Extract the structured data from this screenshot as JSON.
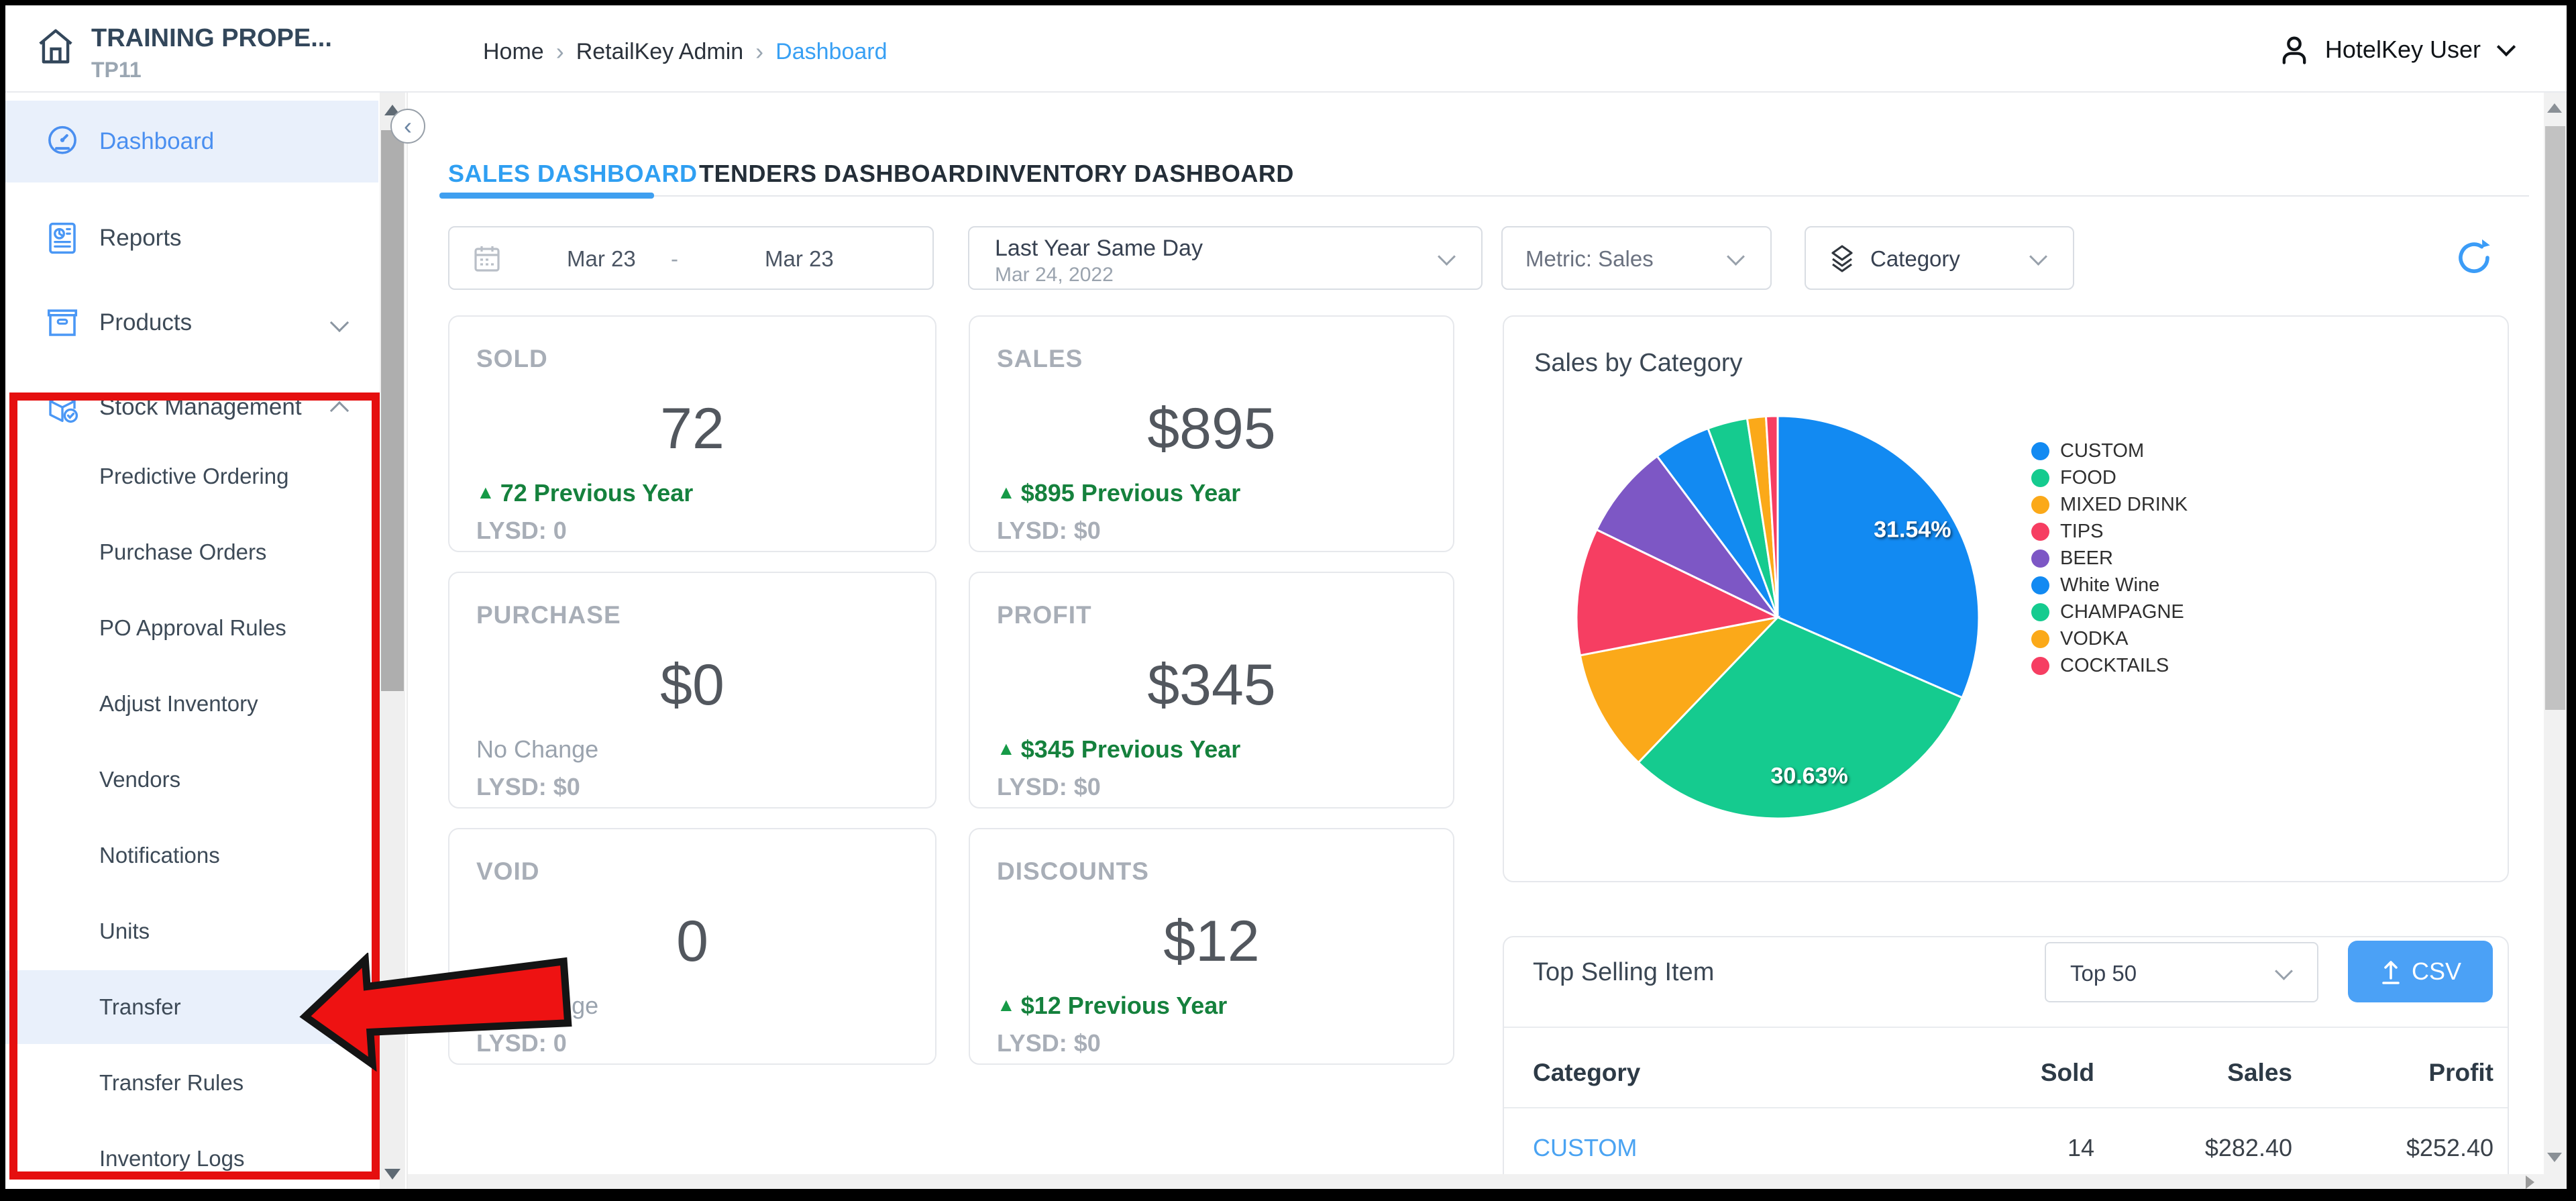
{
  "header": {
    "logo_title": "TRAINING PROPE...",
    "logo_subtitle": "TP11",
    "breadcrumb": [
      "Home",
      "RetailKey Admin",
      "Dashboard"
    ],
    "user_name": "HotelKey User"
  },
  "sidebar": {
    "items": [
      {
        "label": "Dashboard",
        "active": true
      },
      {
        "label": "Reports"
      },
      {
        "label": "Products",
        "chevron": "down"
      },
      {
        "label": "Stock Management",
        "chevron": "up"
      }
    ],
    "stock_subitems": [
      {
        "label": "Predictive Ordering"
      },
      {
        "label": "Purchase Orders"
      },
      {
        "label": "PO Approval Rules"
      },
      {
        "label": "Adjust Inventory"
      },
      {
        "label": "Vendors"
      },
      {
        "label": "Notifications"
      },
      {
        "label": "Units"
      },
      {
        "label": "Transfer",
        "active": true
      },
      {
        "label": "Transfer Rules"
      },
      {
        "label": "Inventory Logs"
      }
    ]
  },
  "tabs": [
    {
      "label": "SALES DASHBOARD",
      "active": true
    },
    {
      "label": "TENDERS DASHBOARD"
    },
    {
      "label": "INVENTORY DASHBOARD"
    }
  ],
  "filters": {
    "date_start": "Mar 23",
    "date_separator": "-",
    "date_end": "Mar 23",
    "compare_label": "Last Year Same Day",
    "compare_sublabel": "Mar 24, 2022",
    "metric_label": "Metric: Sales",
    "grouping_label": "Category"
  },
  "kpis": [
    {
      "label": "SOLD",
      "value": "72",
      "change": "72 Previous Year",
      "change_dir": "up",
      "lysd": "LYSD: 0"
    },
    {
      "label": "SALES",
      "value": "$895",
      "change": "$895 Previous Year",
      "change_dir": "up",
      "lysd": "LYSD: $0"
    },
    {
      "label": "PURCHASE",
      "value": "$0",
      "change": "No Change",
      "change_dir": "none",
      "lysd": "LYSD: $0"
    },
    {
      "label": "PROFIT",
      "value": "$345",
      "change": "$345 Previous Year",
      "change_dir": "up",
      "lysd": "LYSD: $0"
    },
    {
      "label": "VOID",
      "value": "0",
      "change": "No Change",
      "change_dir": "none",
      "lysd": "LYSD: 0"
    },
    {
      "label": "DISCOUNTS",
      "value": "$12",
      "change": "$12 Previous Year",
      "change_dir": "up",
      "lysd": "LYSD: $0"
    }
  ],
  "chart_data": {
    "type": "pie",
    "title": "Sales by Category",
    "legend_position": "right",
    "slices": [
      {
        "name": "CUSTOM",
        "percent": 31.54,
        "color": "#128af2",
        "label": "31.54%"
      },
      {
        "name": "FOOD",
        "percent": 30.63,
        "color": "#15cb8f",
        "label": "30.63%"
      },
      {
        "name": "MIXED DRINK",
        "percent": 9.8,
        "color": "#fba919"
      },
      {
        "name": "TIPS",
        "percent": 10.2,
        "color": "#f63e62"
      },
      {
        "name": "BEER",
        "percent": 7.6,
        "color": "#7d57c5"
      },
      {
        "name": "White Wine",
        "percent": 4.6,
        "color": "#128af2"
      },
      {
        "name": "CHAMPAGNE",
        "percent": 3.2,
        "color": "#15cb8f"
      },
      {
        "name": "VODKA",
        "percent": 1.5,
        "color": "#fba919"
      },
      {
        "name": "COCKTAILS",
        "percent": 0.93,
        "color": "#f63e62"
      }
    ]
  },
  "top_selling": {
    "title": "Top Selling Item",
    "top_n": "Top 50",
    "csv_label": "CSV",
    "columns": [
      "Category",
      "Sold",
      "Sales",
      "Profit"
    ],
    "rows": [
      {
        "category": "CUSTOM",
        "sold": "14",
        "sales": "$282.40",
        "profit": "$252.40"
      }
    ]
  },
  "annotations": {
    "highlight_color": "#e50f0f",
    "arrow_fill": "#ee1212",
    "arrow_outline": "#141414"
  },
  "colors": {
    "accent_blue": "#38a0f4",
    "positive_green": "#15813d",
    "csv_button": "#4ba1f6"
  }
}
